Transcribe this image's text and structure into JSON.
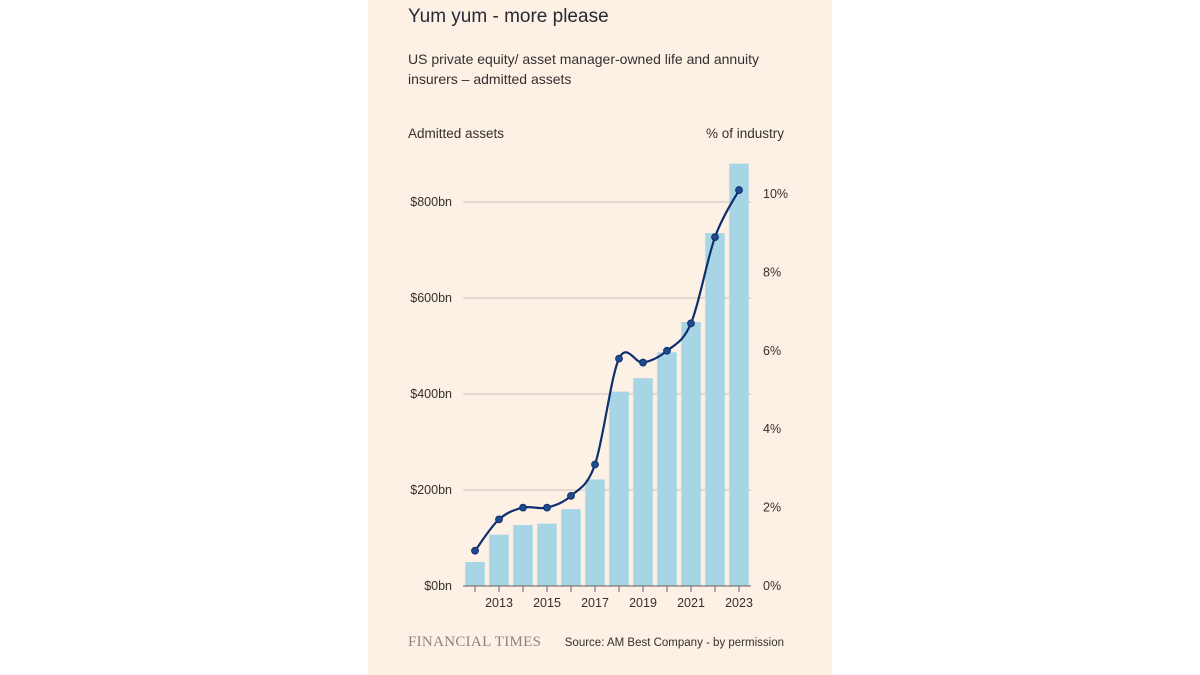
{
  "header": {
    "title": "Yum yum - more please",
    "subtitle": "US private equity/ asset manager-owned life and annuity insurers – admitted assets"
  },
  "axes": {
    "left_title": "Admitted assets",
    "right_title": "% of industry"
  },
  "footer": {
    "brand": "FINANCIAL TIMES",
    "source": "Source: AM Best Company - by permission"
  },
  "colors": {
    "background": "#fdf1e6",
    "bar": "#a8d5e6",
    "line": "#0f2f6e",
    "gridline": "#c9c2bb"
  },
  "chart_data": {
    "type": "bar",
    "x": [
      2012,
      2013,
      2014,
      2015,
      2016,
      2017,
      2018,
      2019,
      2020,
      2021,
      2022,
      2023
    ],
    "x_tick_labels": [
      "2013",
      "2015",
      "2017",
      "2019",
      "2021",
      "2023"
    ],
    "series": [
      {
        "name": "Admitted assets",
        "type": "bar",
        "axis": "left",
        "values": [
          50,
          107,
          127,
          130,
          160,
          222,
          405,
          433,
          487,
          550,
          735,
          880
        ]
      },
      {
        "name": "% of industry",
        "type": "line",
        "axis": "right",
        "values": [
          0.9,
          1.7,
          2.0,
          2.0,
          2.3,
          3.1,
          5.8,
          5.7,
          6.0,
          6.7,
          8.9,
          10.1
        ]
      }
    ],
    "left_axis": {
      "ylim": [
        0,
        880
      ],
      "ticks": [
        0,
        200,
        400,
        600,
        800
      ],
      "tick_labels": [
        "$0bn",
        "$200bn",
        "$400bn",
        "$600bn",
        "$800bn"
      ]
    },
    "right_axis": {
      "ylim": [
        0,
        10
      ],
      "ticks": [
        0,
        2,
        4,
        6,
        8,
        10
      ],
      "tick_labels": [
        "0%",
        "2%",
        "4%",
        "6%",
        "8%",
        "10%"
      ]
    },
    "grid": true,
    "legend": "none"
  }
}
